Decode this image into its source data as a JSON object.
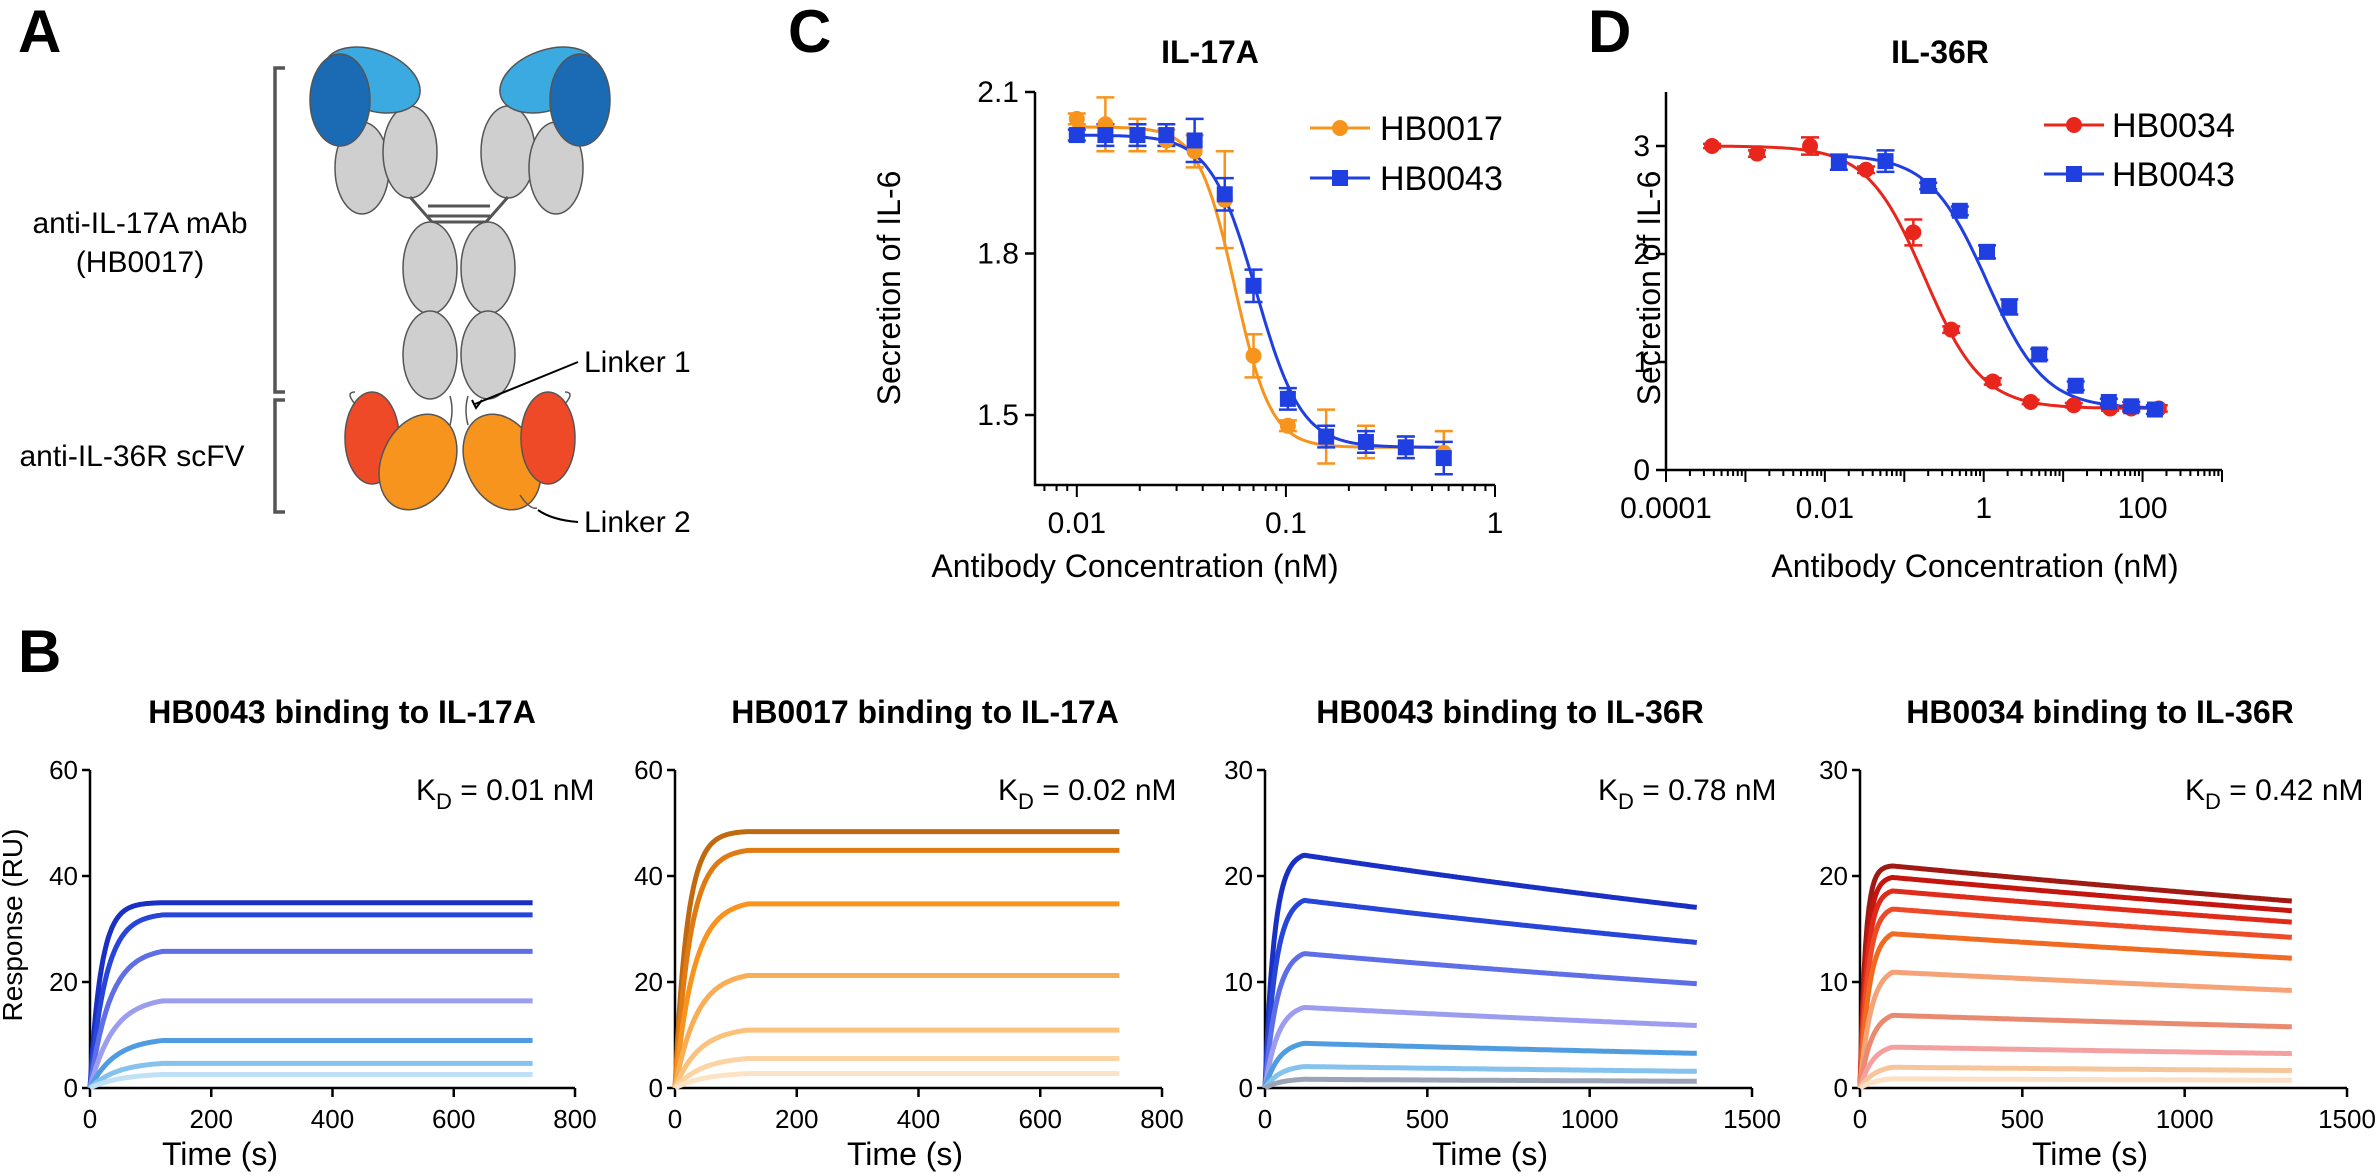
{
  "panels": {
    "a": {
      "letter": "A"
    },
    "b": {
      "letter": "B"
    },
    "c": {
      "letter": "C"
    },
    "d": {
      "letter": "D"
    }
  },
  "schematic": {
    "mab_label_line1": "anti-IL-17A mAb",
    "mab_label_line2": "(HB0017)",
    "scfv_label": "anti-IL-36R scFV",
    "linker1": "Linker 1",
    "linker2": "Linker 2"
  },
  "colors": {
    "orange": "#f7941d",
    "blue": "#1f3fe0",
    "red": "#e8261c",
    "grey": "#cfcfcf"
  },
  "chart_data": [
    {
      "id": "C",
      "type": "scatter",
      "title": "IL-17A",
      "xlabel": "Antibody Concentration (nM)",
      "ylabel": "Secretion of IL-6",
      "xscale": "log",
      "xlim": [
        0.00631,
        1
      ],
      "ylim": [
        1.37,
        2.1
      ],
      "xticks": [
        0.01,
        0.1,
        1
      ],
      "xtick_labels": [
        "0.01",
        "0.1",
        "1"
      ],
      "yticks": [
        1.5,
        1.8,
        2.1
      ],
      "ytick_labels": [
        "1.5",
        "1.8",
        "2.1"
      ],
      "legend": [
        "HB0017",
        "HB0043"
      ],
      "legend_position": "top-right",
      "series": [
        {
          "name": "HB0017",
          "color": "#f7941d",
          "marker": "circle",
          "x": [
            0.01,
            0.0137,
            0.0195,
            0.0268,
            0.0366,
            0.051,
            0.07,
            0.1022,
            0.1558,
            0.2414,
            0.3744,
            0.5689
          ],
          "y": [
            2.05,
            2.04,
            2.02,
            2.01,
            1.99,
            1.9,
            1.61,
            1.48,
            1.46,
            1.45,
            1.44,
            1.43
          ],
          "err": [
            0.01,
            0.05,
            0.03,
            0.02,
            0.03,
            0.09,
            0.04,
            0.01,
            0.05,
            0.03,
            0.02,
            0.04
          ],
          "fit": {
            "top": 2.035,
            "bottom": 1.44,
            "ec50": 0.057,
            "hill": 5.0
          }
        },
        {
          "name": "HB0043",
          "color": "#1f3fe0",
          "marker": "square",
          "x": [
            0.01,
            0.0137,
            0.0195,
            0.0268,
            0.0366,
            0.051,
            0.07,
            0.1022,
            0.1558,
            0.2414,
            0.3744,
            0.5689
          ],
          "y": [
            2.02,
            2.02,
            2.02,
            2.02,
            2.01,
            1.91,
            1.74,
            1.53,
            1.46,
            1.45,
            1.44,
            1.42
          ],
          "err": [
            0.01,
            0.02,
            0.02,
            0.02,
            0.04,
            0.03,
            0.03,
            0.02,
            0.02,
            0.02,
            0.02,
            0.03
          ],
          "fit": {
            "top": 2.02,
            "bottom": 1.44,
            "ec50": 0.072,
            "hill": 4.0
          }
        }
      ]
    },
    {
      "id": "D",
      "type": "scatter",
      "title": "IL-36R",
      "xlabel": "Antibody Concentration (nM)",
      "ylabel": "Secretion of IL-6",
      "xscale": "log",
      "xlim": [
        0.0001,
        1000
      ],
      "ylim": [
        0,
        3.5
      ],
      "xticks": [
        0.0001,
        0.01,
        1,
        100
      ],
      "xtick_labels": [
        "0.0001",
        "0.01",
        "1",
        "100"
      ],
      "yticks": [
        0,
        1,
        2,
        3
      ],
      "ytick_labels": [
        "0",
        "1",
        "2",
        "3"
      ],
      "legend": [
        "HB0034",
        "HB0043"
      ],
      "legend_position": "top-right",
      "series": [
        {
          "name": "HB0034",
          "color": "#e8261c",
          "marker": "circle",
          "x": [
            0.00038,
            0.0014,
            0.0065,
            0.033,
            0.13,
            0.39,
            1.3,
            3.9,
            13.6,
            39,
            72,
            160
          ],
          "y": [
            3.0,
            2.93,
            3.0,
            2.78,
            2.2,
            1.3,
            0.82,
            0.63,
            0.6,
            0.57,
            0.57,
            0.57
          ],
          "err": [
            0.02,
            0.03,
            0.08,
            0.03,
            0.12,
            0.03,
            0.03,
            0.02,
            0.02,
            0.02,
            0.03,
            0.03
          ],
          "fit": {
            "top": 3.0,
            "bottom": 0.57,
            "ec50": 0.18,
            "hill": 1.2
          }
        },
        {
          "name": "HB0043",
          "color": "#1f3fe0",
          "marker": "square",
          "x": [
            0.015,
            0.058,
            0.2,
            0.5,
            1.1,
            2.1,
            5.0,
            14.4,
            37.6,
            72,
            143
          ],
          "y": [
            2.85,
            2.86,
            2.63,
            2.4,
            2.02,
            1.51,
            1.07,
            0.78,
            0.63,
            0.59,
            0.56
          ],
          "err": [
            0.07,
            0.1,
            0.03,
            0.04,
            0.06,
            0.07,
            0.05,
            0.04,
            0.03,
            0.04,
            0.04
          ],
          "fit": {
            "top": 2.92,
            "bottom": 0.57,
            "ec50": 1.1,
            "hill": 1.2
          }
        }
      ]
    },
    {
      "id": "B1",
      "type": "line",
      "title": "HB0043 binding to IL-17A",
      "xlabel": "Time (s)",
      "ylabel": "Response (RU)",
      "kd_prefix": "K",
      "kd_sub": "D",
      "kd_value": " = 0.01 nM",
      "xlim": [
        0,
        800
      ],
      "ylim": [
        0,
        60
      ],
      "xticks": [
        0,
        200,
        400,
        600,
        800
      ],
      "xtick_labels": [
        "0",
        "200",
        "400",
        "600",
        "800"
      ],
      "yticks": [
        0,
        20,
        40,
        60
      ],
      "ytick_labels": [
        "0",
        "20",
        "40",
        "60"
      ],
      "assoc_end": 120,
      "t_end": 730,
      "dissoc_rate": 0.0,
      "series": [
        {
          "plateau": 35,
          "k": 0.055,
          "color": "#1a2fc4"
        },
        {
          "plateau": 33,
          "k": 0.038,
          "color": "#2745d8"
        },
        {
          "plateau": 26.5,
          "k": 0.03,
          "color": "#5e6ee6"
        },
        {
          "plateau": 17.2,
          "k": 0.026,
          "color": "#9d9df0"
        },
        {
          "plateau": 9.5,
          "k": 0.024,
          "color": "#4f9de0"
        },
        {
          "plateau": 5.0,
          "k": 0.022,
          "color": "#86c2ee"
        },
        {
          "plateau": 2.8,
          "k": 0.02,
          "color": "#bfe0f6"
        }
      ]
    },
    {
      "id": "B2",
      "type": "line",
      "title": "HB0017 binding to IL-17A",
      "xlabel": "Time (s)",
      "ylabel": "",
      "kd_prefix": "K",
      "kd_sub": "D",
      "kd_value": " = 0.02 nM",
      "xlim": [
        0,
        800
      ],
      "ylim": [
        0,
        60
      ],
      "xticks": [
        0,
        200,
        400,
        600,
        800
      ],
      "xtick_labels": [
        "0",
        "200",
        "400",
        "600",
        "800"
      ],
      "yticks": [
        0,
        20,
        40,
        60
      ],
      "ytick_labels": [
        "0",
        "20",
        "40",
        "60"
      ],
      "assoc_end": 120,
      "t_end": 730,
      "dissoc_rate": 0.0,
      "series": [
        {
          "plateau": 48.5,
          "k": 0.05,
          "color": "#c06a10"
        },
        {
          "plateau": 45.2,
          "k": 0.04,
          "color": "#e07a12"
        },
        {
          "plateau": 35.5,
          "k": 0.032,
          "color": "#f7941d"
        },
        {
          "plateau": 22,
          "k": 0.028,
          "color": "#f9ad55"
        },
        {
          "plateau": 11.5,
          "k": 0.025,
          "color": "#fbc27e"
        },
        {
          "plateau": 6,
          "k": 0.022,
          "color": "#fcd3a3"
        },
        {
          "plateau": 3,
          "k": 0.02,
          "color": "#fde3c6"
        }
      ]
    },
    {
      "id": "B3",
      "type": "line",
      "title": "HB0043 binding to IL-36R",
      "xlabel": "Time (s)",
      "ylabel": "",
      "kd_prefix": "K",
      "kd_sub": "D",
      "kd_value": " = 0.78 nM",
      "xlim": [
        0,
        1500
      ],
      "ylim": [
        0,
        30
      ],
      "xticks": [
        0,
        500,
        1000,
        1500
      ],
      "xtick_labels": [
        "0",
        "500",
        "1000",
        "1500"
      ],
      "yticks": [
        0,
        10,
        20,
        30
      ],
      "ytick_labels": [
        "0",
        "10",
        "20",
        "30"
      ],
      "assoc_end": 120,
      "t_end": 1330,
      "dissoc_rate": 0.00021,
      "series": [
        {
          "plateau": 22.3,
          "k": 0.035,
          "color": "#1a2fc4"
        },
        {
          "plateau": 18.2,
          "k": 0.03,
          "color": "#2745d8"
        },
        {
          "plateau": 13.2,
          "k": 0.027,
          "color": "#5e6ee6"
        },
        {
          "plateau": 8.0,
          "k": 0.025,
          "color": "#9d9df0"
        },
        {
          "plateau": 4.5,
          "k": 0.023,
          "color": "#4f9de0"
        },
        {
          "plateau": 2.2,
          "k": 0.021,
          "color": "#86c2ee"
        },
        {
          "plateau": 0.9,
          "k": 0.02,
          "color": "#9aa4b6"
        }
      ]
    },
    {
      "id": "B4",
      "type": "line",
      "title": "HB0034 binding to IL-36R",
      "xlabel": "Time (s)",
      "ylabel": "",
      "kd_prefix": "K",
      "kd_sub": "D",
      "kd_value": " = 0.42 nM",
      "xlim": [
        0,
        1500
      ],
      "ylim": [
        0,
        30
      ],
      "xticks": [
        0,
        500,
        1000,
        1500
      ],
      "xtick_labels": [
        "0",
        "500",
        "1000",
        "1500"
      ],
      "yticks": [
        0,
        10,
        20,
        30
      ],
      "ytick_labels": [
        "0",
        "10",
        "20",
        "30"
      ],
      "assoc_end": 100,
      "t_end": 1330,
      "dissoc_rate": 0.00014,
      "series": [
        {
          "plateau": 21.0,
          "k": 0.06,
          "color": "#9e1a12"
        },
        {
          "plateau": 20.0,
          "k": 0.05,
          "color": "#c4160f"
        },
        {
          "plateau": 18.8,
          "k": 0.045,
          "color": "#e02a1a"
        },
        {
          "plateau": 17.2,
          "k": 0.04,
          "color": "#ee4a28"
        },
        {
          "plateau": 15.0,
          "k": 0.035,
          "color": "#f06a20"
        },
        {
          "plateau": 11.5,
          "k": 0.03,
          "color": "#f4a276"
        },
        {
          "plateau": 7.3,
          "k": 0.028,
          "color": "#e98a70"
        },
        {
          "plateau": 4.2,
          "k": 0.025,
          "color": "#f4a0a0"
        },
        {
          "plateau": 2.2,
          "k": 0.022,
          "color": "#f7c59a"
        },
        {
          "plateau": 1.0,
          "k": 0.02,
          "color": "#fbe0c6"
        }
      ]
    }
  ]
}
